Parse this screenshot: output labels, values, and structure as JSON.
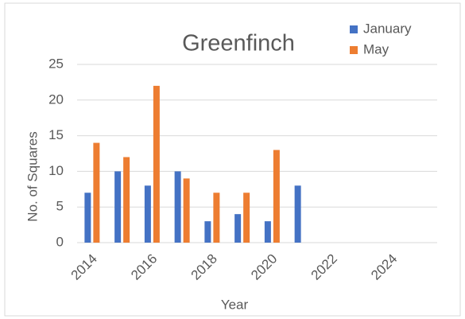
{
  "chart_data": {
    "type": "bar",
    "title": "Greenfinch",
    "x_label": "Year",
    "y_label": "No. of Squares",
    "categories": [
      2014,
      null,
      2016,
      null,
      2018,
      null,
      2020,
      null,
      2022,
      null,
      2024,
      null
    ],
    "series": [
      {
        "name": "January",
        "color": "#4472c4",
        "values": [
          7,
          10,
          8,
          10,
          3,
          4,
          3,
          8,
          null,
          null,
          null,
          null
        ]
      },
      {
        "name": "May",
        "color": "#ed7d31",
        "values": [
          14,
          12,
          22,
          9,
          7,
          7,
          13,
          null,
          null,
          null,
          null,
          null
        ]
      }
    ],
    "ylim": [
      0,
      25
    ],
    "yticks": [
      0,
      5,
      10,
      15,
      20,
      25
    ],
    "grid": true,
    "legend": "top-right"
  }
}
